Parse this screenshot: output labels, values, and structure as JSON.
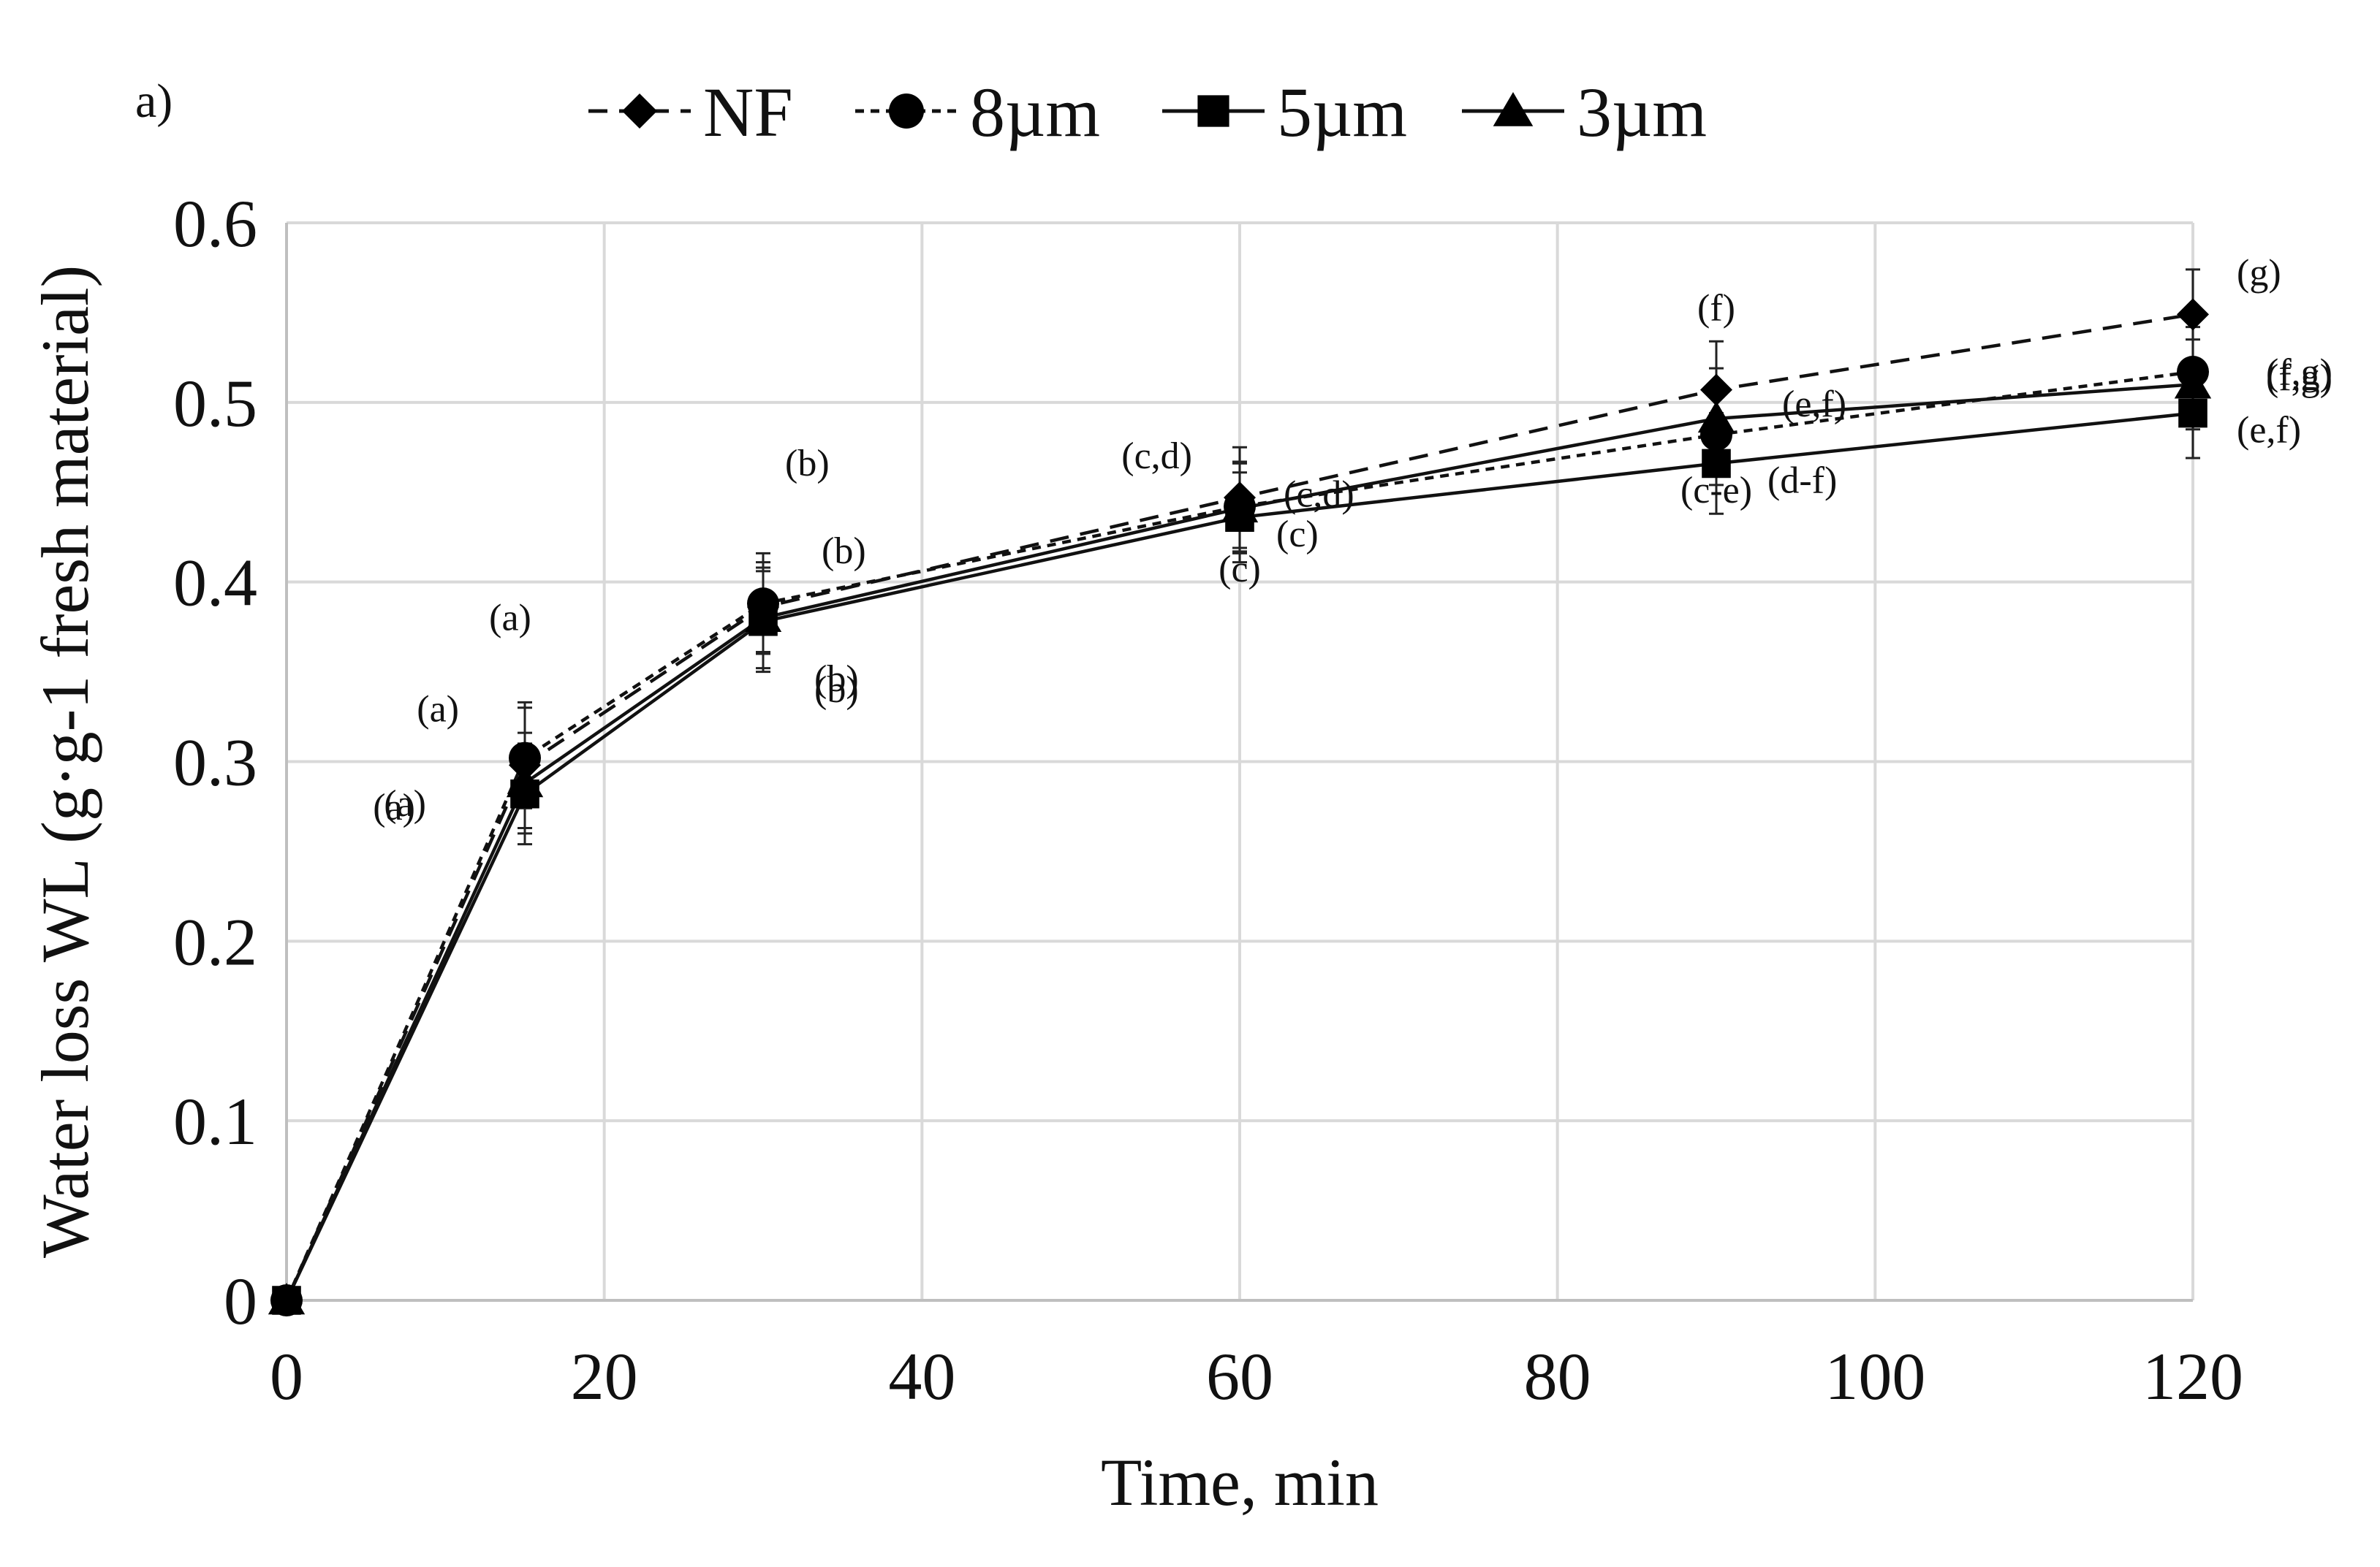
{
  "chart_data": {
    "type": "line",
    "panel_label": "a)",
    "title": "",
    "xlabel": "Time, min",
    "ylabel": "Water loss WL (g·g-1 fresh material)",
    "xlim": [
      0,
      120
    ],
    "ylim": [
      0,
      0.6
    ],
    "x_ticks": [
      "0",
      "20",
      "40",
      "60",
      "80",
      "100",
      "120"
    ],
    "y_ticks": [
      "0",
      "0.1",
      "0.2",
      "0.3",
      "0.4",
      "0.5",
      "0.6"
    ],
    "grid": true,
    "legend_position": "top",
    "x": [
      0,
      15,
      30,
      60,
      90,
      120
    ],
    "series": [
      {
        "name": "NF",
        "marker": "diamond",
        "line": "dashed",
        "values": [
          0,
          0.298,
          0.386,
          0.447,
          0.507,
          0.549
        ],
        "errors": [
          0,
          0.035,
          0.025,
          0.028,
          0.027,
          0.025
        ],
        "annotations": [
          "",
          "(a)",
          "(b)",
          "(c,d)",
          "(f)",
          "(g)"
        ]
      },
      {
        "name": "8µm",
        "marker": "circle",
        "line": "dotted",
        "values": [
          0,
          0.302,
          0.388,
          0.442,
          0.482,
          0.517
        ],
        "errors": [
          0,
          0.028,
          0.028,
          0.025,
          0.028,
          0.025
        ],
        "annotations": [
          "",
          "(a)",
          "(b)",
          "(c,d)",
          "(e,f)",
          "(f,g)"
        ]
      },
      {
        "name": "5µm",
        "marker": "square",
        "line": "solid",
        "values": [
          0,
          0.282,
          0.378,
          0.436,
          0.466,
          0.494
        ],
        "errors": [
          0,
          0.028,
          0.028,
          0.025,
          0.028,
          0.025
        ],
        "annotations": [
          "",
          "(a)",
          "(b)",
          "(c)",
          "(d-f)",
          "(e,f)"
        ]
      },
      {
        "name": "3µm",
        "marker": "triangle",
        "line": "solid",
        "values": [
          0,
          0.288,
          0.38,
          0.441,
          0.491,
          0.51
        ],
        "errors": [
          0,
          0.028,
          0.028,
          0.025,
          0.028,
          0.025
        ],
        "annotations": [
          "",
          "(a)",
          "(b)",
          "(c)",
          "(c-e)",
          "(f,g)"
        ]
      }
    ]
  }
}
